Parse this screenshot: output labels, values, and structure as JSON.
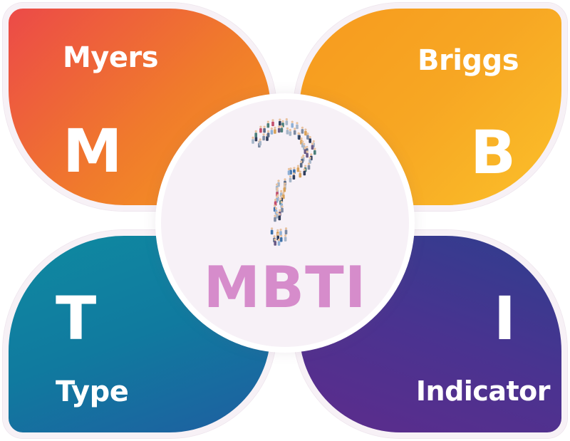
{
  "quadrants": {
    "myers": {
      "word": "Myers",
      "letter": "M",
      "color_start": "#ec4a48",
      "color_end": "#f59a1f"
    },
    "briggs": {
      "word": "Briggs",
      "letter": "B",
      "color_start": "#f79a1e",
      "color_end": "#fbc02a"
    },
    "type": {
      "word": "Type",
      "letter": "T",
      "color_start": "#0f8aa1",
      "color_end": "#1f5ea0"
    },
    "indicator": {
      "word": "Indicator",
      "letter": "I",
      "color_start": "#2f3e8e",
      "color_end": "#5d2c8c"
    }
  },
  "center": {
    "label": "MBTI",
    "label_color": "#d68ccb",
    "icon": "crowd-question-mark-icon"
  }
}
